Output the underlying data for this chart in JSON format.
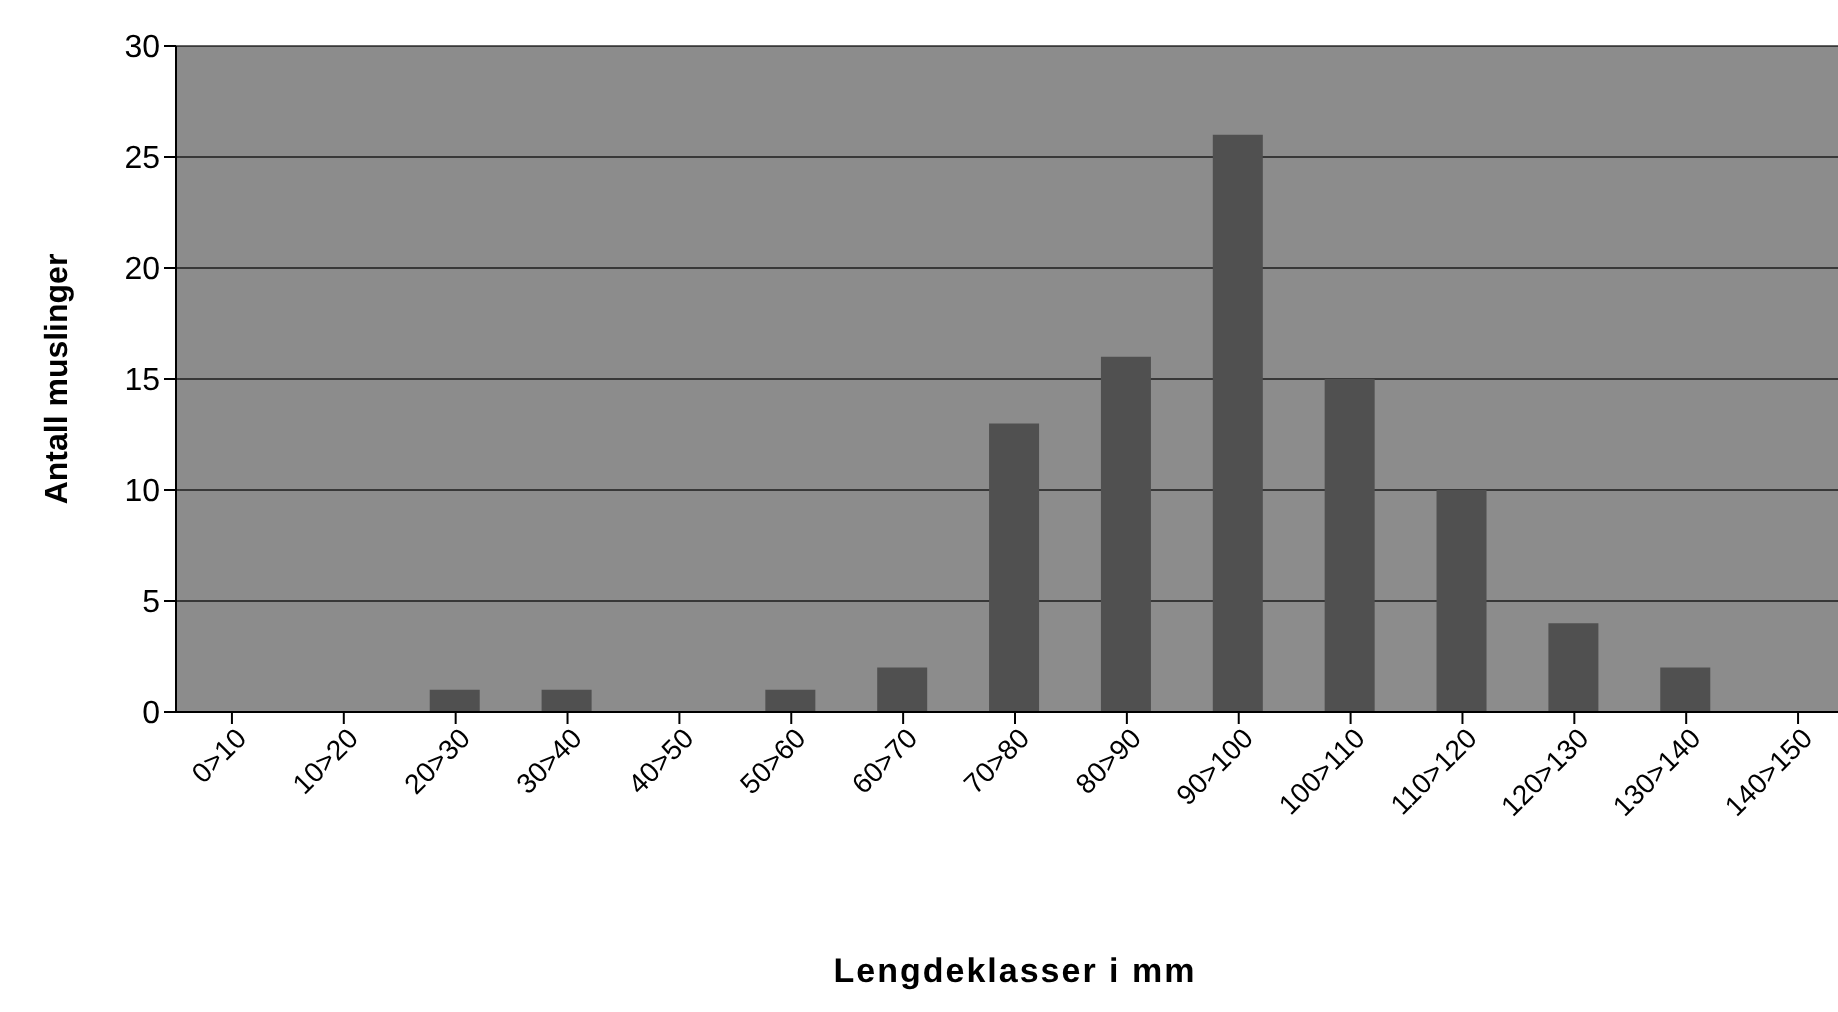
{
  "chart_data": {
    "type": "bar",
    "xlabel": "Lengdeklasser i mm",
    "ylabel": "Antall muslinger",
    "categories": [
      "0>10",
      "10>20",
      "20>30",
      "30>40",
      "40>50",
      "50>60",
      "60>70",
      "70>80",
      "80>90",
      "90>100",
      "100>110",
      "110>120",
      "120>130",
      "130>140",
      "140>150"
    ],
    "values": [
      0,
      0,
      1,
      1,
      0,
      1,
      2,
      13,
      16,
      26,
      15,
      10,
      4,
      2,
      0
    ],
    "color": "#505050",
    "ylim": [
      0,
      30
    ],
    "yticks": [
      0,
      5,
      10,
      15,
      20,
      25,
      30
    ],
    "grid": "y",
    "legend": false
  }
}
